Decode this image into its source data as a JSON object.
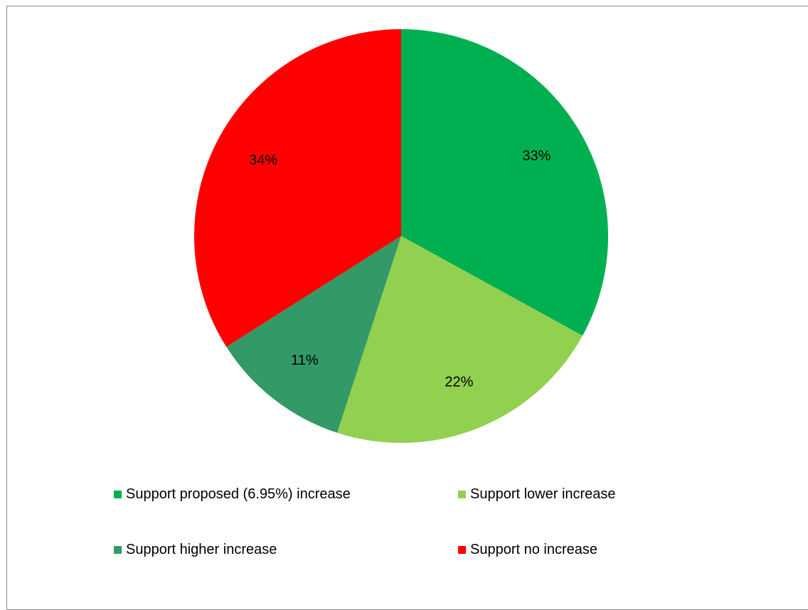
{
  "chart_data": {
    "type": "pie",
    "title": "",
    "categories": [
      "Support proposed (6.95%) increase",
      "Support lower increase",
      "Support higher increase",
      "Support no increase"
    ],
    "values": [
      33,
      22,
      11,
      34
    ],
    "labels": [
      "33%",
      "22%",
      "11%",
      "34%"
    ],
    "colors": [
      "#00b050",
      "#92d050",
      "#339966",
      "#ff0000"
    ],
    "start_angle_deg": 0,
    "direction": "clockwise",
    "legend_position": "bottom"
  },
  "legend": {
    "items": [
      {
        "label": "Support proposed (6.95%) increase",
        "color": "#00b050"
      },
      {
        "label": "Support lower increase",
        "color": "#92d050"
      },
      {
        "label": "Support higher increase",
        "color": "#339966"
      },
      {
        "label": "Support no increase",
        "color": "#ff0000"
      }
    ]
  }
}
